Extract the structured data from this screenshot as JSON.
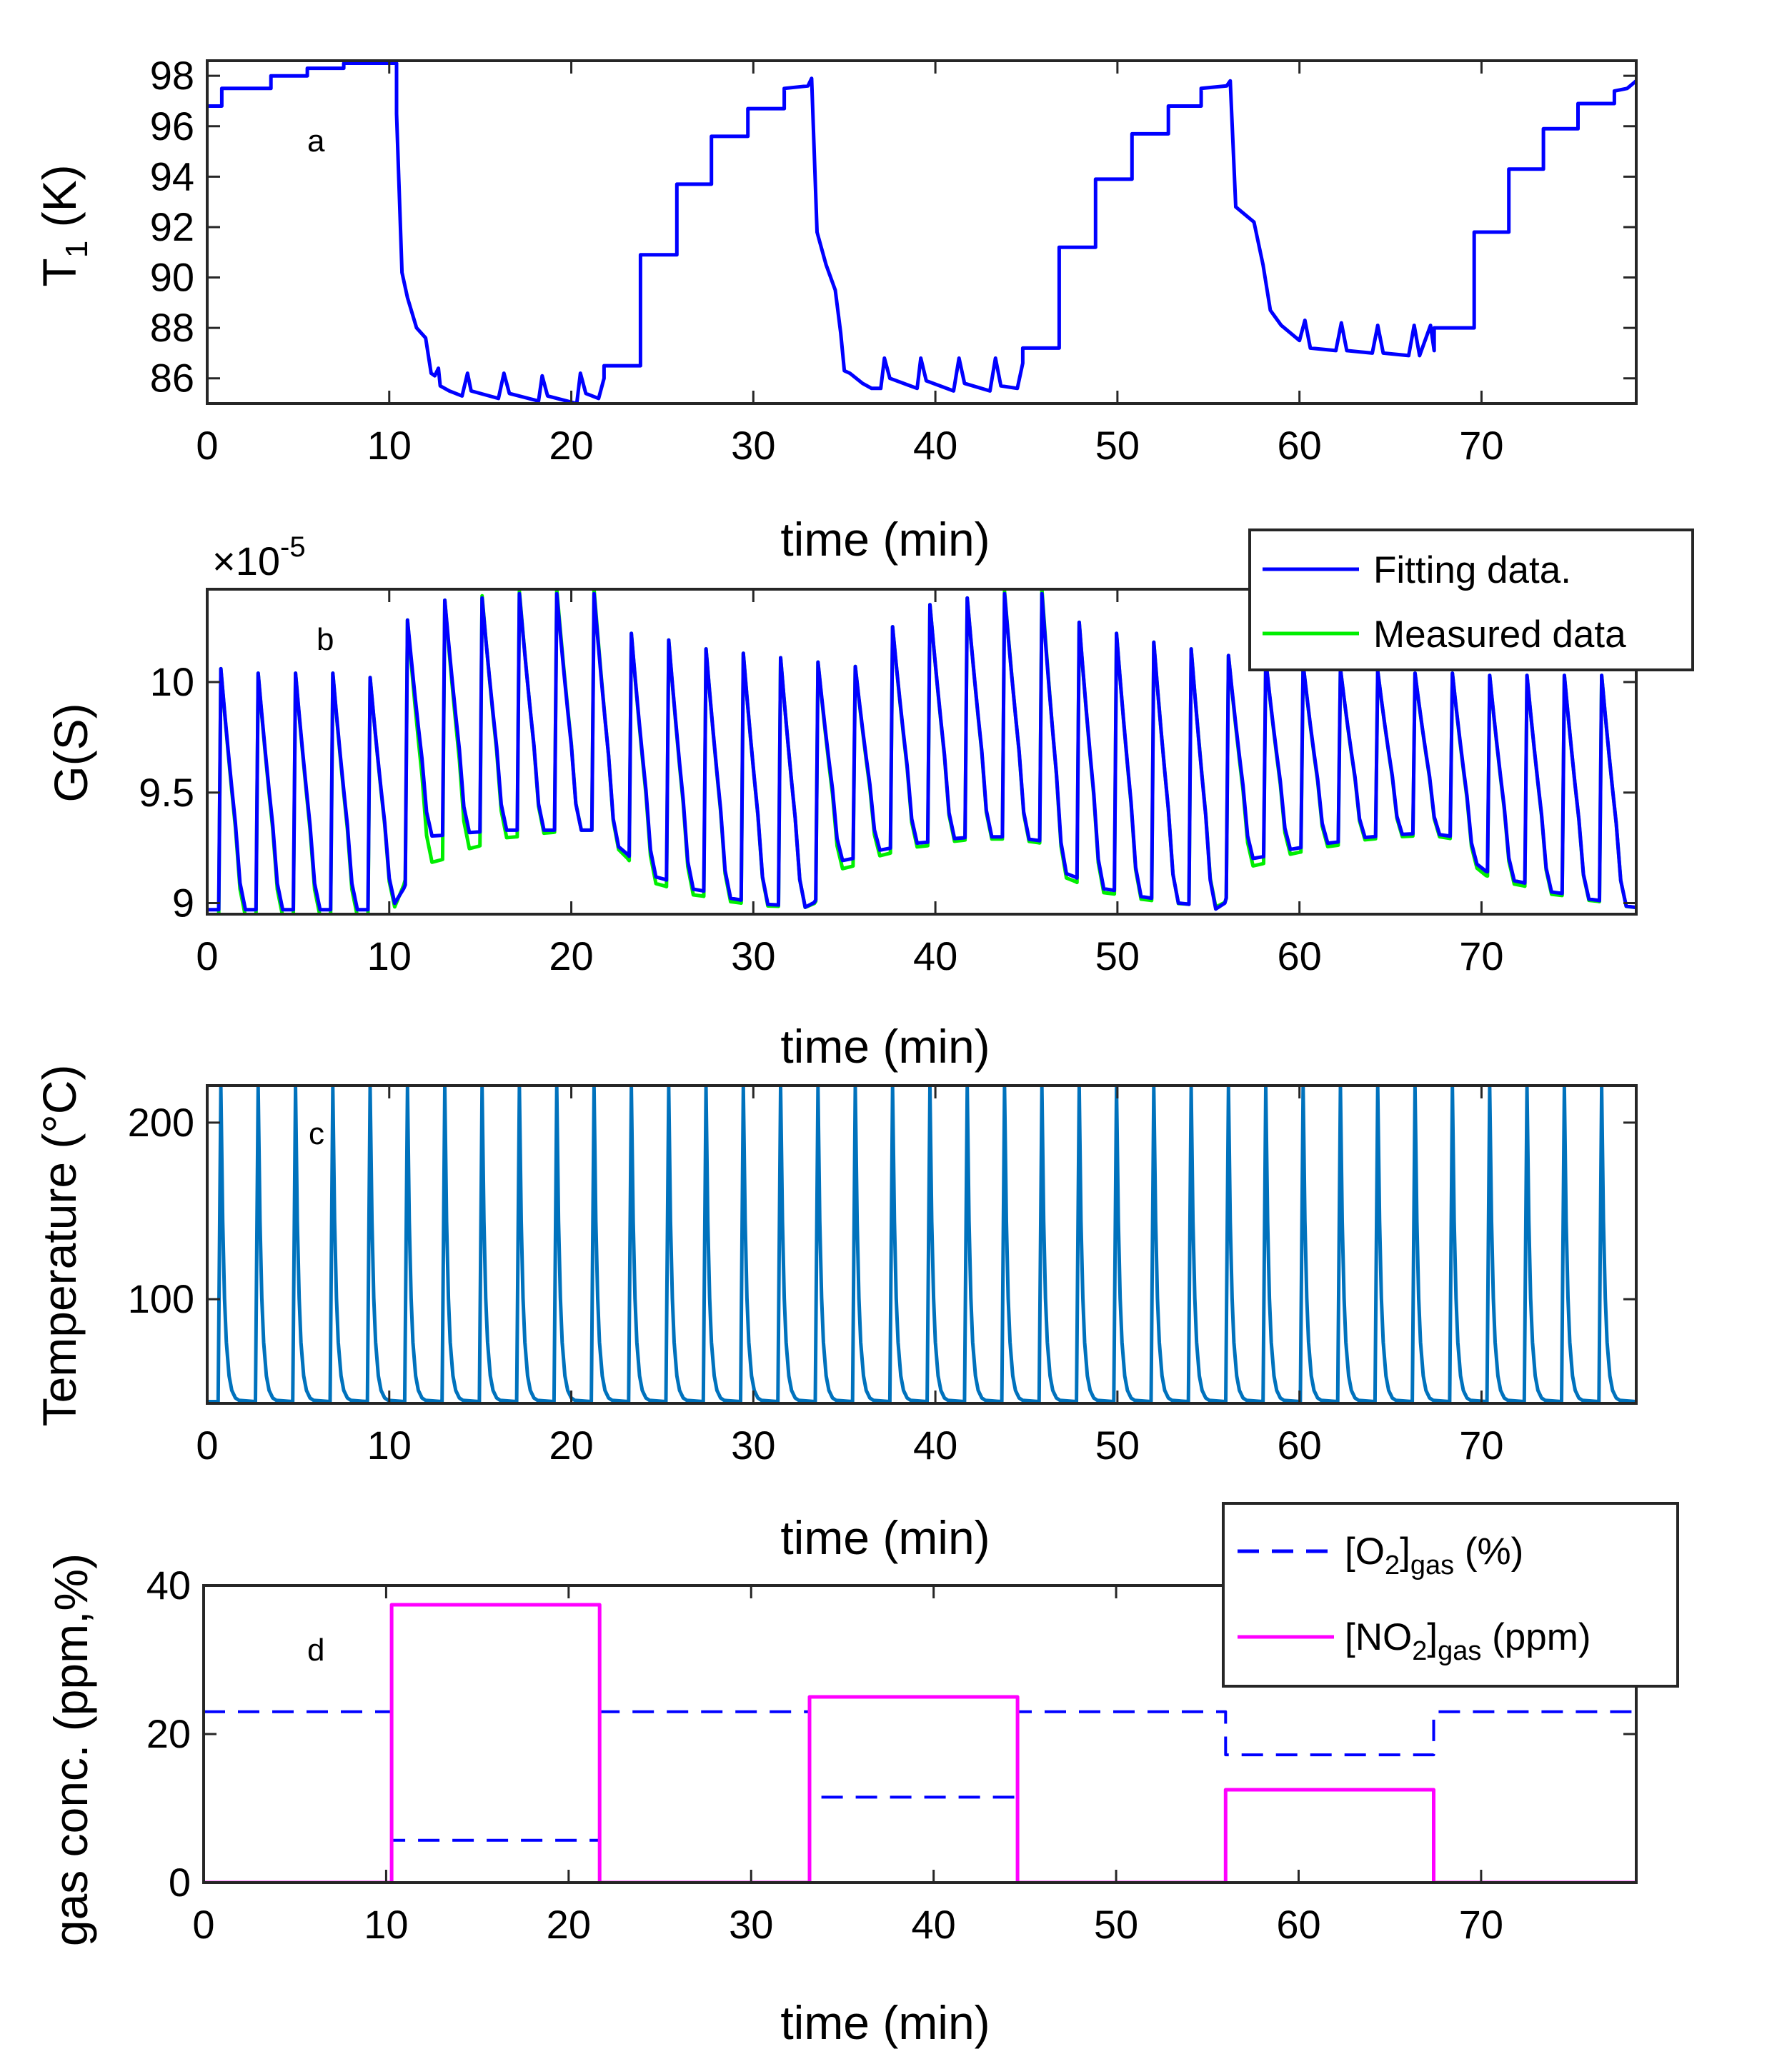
{
  "colors": {
    "fitting": "#0000ff",
    "measured": "#00ee00",
    "temperature": "#0072bd",
    "o2": "#0000ff",
    "no2": "#ff00ff",
    "axis": "#262626",
    "background": "#ffffff"
  },
  "chart_data": [
    {
      "type": "line",
      "panel_label": "a",
      "xlabel": "time (min)",
      "ylabel": "T",
      "ylabel_sub": "1",
      "ylabel_tail": " (K)",
      "xlim": [
        0,
        78.5
      ],
      "ylim": [
        85.0,
        98.6
      ],
      "xticks": [
        0,
        10,
        20,
        30,
        40,
        50,
        60,
        70
      ],
      "yticks": [
        86,
        88,
        90,
        92,
        94,
        96,
        98
      ],
      "legend": null,
      "series": [
        {
          "name": "",
          "x": [
            0,
            0.8,
            0.8,
            3.5,
            3.5,
            5.5,
            5.5,
            7.5,
            7.5,
            10.4,
            10.4,
            10.7,
            11.0,
            11.5,
            12.0,
            12.3,
            12.5,
            12.7,
            12.8,
            13.3,
            14.0,
            14.3,
            14.5,
            16.0,
            16.3,
            16.6,
            18.2,
            18.4,
            18.7,
            20.3,
            20.5,
            20.8,
            21.5,
            21.8,
            21.8,
            23.8,
            23.8,
            25.8,
            25.8,
            27.7,
            27.7,
            29.7,
            29.7,
            31.7,
            31.7,
            33.0,
            33.2,
            33.5,
            34.0,
            34.5,
            34.8,
            35.0,
            35.3,
            36.0,
            36.5,
            37.0,
            37.2,
            37.5,
            39.0,
            39.2,
            39.5,
            41.0,
            41.3,
            41.6,
            43.0,
            43.3,
            43.6,
            44.5,
            44.8,
            44.8,
            46.8,
            46.8,
            48.8,
            48.8,
            50.8,
            50.8,
            52.8,
            52.8,
            54.6,
            54.6,
            56.0,
            56.2,
            56.5,
            57.5,
            58.0,
            58.4,
            58.6,
            59.0,
            60.0,
            60.3,
            60.6,
            62.0,
            62.3,
            62.6,
            64.0,
            64.3,
            64.6,
            66.0,
            66.3,
            66.6,
            67.2,
            67.4,
            67.4,
            69.6,
            69.6,
            71.5,
            71.5,
            73.4,
            73.4,
            75.3,
            75.3,
            77.3,
            77.3,
            78.0,
            78.5
          ],
          "values": [
            96.8,
            96.8,
            97.5,
            97.5,
            98.0,
            98.0,
            98.3,
            98.3,
            98.5,
            98.5,
            96.5,
            90.2,
            89.2,
            88.0,
            87.6,
            86.2,
            86.1,
            86.4,
            85.7,
            85.5,
            85.3,
            86.2,
            85.5,
            85.2,
            86.2,
            85.4,
            85.1,
            86.1,
            85.3,
            85.0,
            86.2,
            85.4,
            85.2,
            86.0,
            86.5,
            86.5,
            90.9,
            90.9,
            93.7,
            93.7,
            95.6,
            95.6,
            96.7,
            96.7,
            97.5,
            97.6,
            97.9,
            91.8,
            90.5,
            89.5,
            87.8,
            86.3,
            86.2,
            85.8,
            85.6,
            85.6,
            86.8,
            86.0,
            85.6,
            86.8,
            85.9,
            85.5,
            86.8,
            85.8,
            85.5,
            86.8,
            85.7,
            85.6,
            86.6,
            87.2,
            87.2,
            91.2,
            91.2,
            93.9,
            93.9,
            95.7,
            95.7,
            96.8,
            96.8,
            97.5,
            97.6,
            97.8,
            92.8,
            92.2,
            90.5,
            88.7,
            88.5,
            88.1,
            87.5,
            88.3,
            87.2,
            87.1,
            88.2,
            87.1,
            87.0,
            88.1,
            87.0,
            86.9,
            88.1,
            86.9,
            88.1,
            87.1,
            88.0,
            88.0,
            91.8,
            91.8,
            94.3,
            94.3,
            95.9,
            95.9,
            96.9,
            96.9,
            97.4,
            97.5,
            97.8
          ]
        }
      ]
    },
    {
      "type": "line",
      "panel_label": "b",
      "xlabel": "time (min)",
      "ylabel": "G(S)",
      "exponent_label": "×10",
      "exponent_power": "-5",
      "xlim": [
        0,
        78.5
      ],
      "ylim": [
        8.95,
        10.42
      ],
      "xticks": [
        0,
        10,
        20,
        30,
        40,
        50,
        60,
        70
      ],
      "yticks": [
        9,
        9.5,
        10
      ],
      "ytick_labels": [
        "9",
        "9.5",
        "10"
      ],
      "pulse_period_min": 2.05,
      "first_pulse_min": 0.75,
      "legend": {
        "position": "top-right",
        "entries": [
          "Fitting data.",
          "Measured data"
        ]
      },
      "series": [
        {
          "name": "Fitting data.",
          "baseline_x": [
            0,
            10.3,
            12.0,
            16.0,
            20.0,
            22.0,
            23.8,
            26.0,
            30.0,
            33.2,
            34.5,
            38.0,
            42.0,
            44.6,
            46.5,
            47.0,
            48.5,
            52.0,
            55.8,
            56.5,
            60.0,
            64.0,
            67.3,
            69.5,
            70.0,
            74.0,
            78.5
          ],
          "baseline": [
            8.97,
            8.97,
            9.3,
            9.33,
            9.33,
            9.33,
            9.15,
            9.08,
            9.0,
            8.98,
            9.18,
            9.26,
            9.3,
            9.3,
            9.27,
            9.15,
            9.08,
            9.02,
            8.97,
            9.18,
            9.25,
            9.3,
            9.32,
            9.28,
            9.15,
            9.05,
            8.98
          ],
          "peaks": [
            10.06,
            10.04,
            10.04,
            10.04,
            10.02,
            10.28,
            10.37,
            10.38,
            10.4,
            10.4,
            10.4,
            10.22,
            10.19,
            10.15,
            10.13,
            10.11,
            10.09,
            10.07,
            10.25,
            10.35,
            10.38,
            10.4,
            10.4,
            10.27,
            10.22,
            10.18,
            10.15,
            10.12,
            10.1,
            10.08,
            10.06,
            10.05,
            10.04,
            10.04,
            10.03,
            10.03,
            10.03,
            10.03
          ]
        },
        {
          "name": "Measured data",
          "baseline_x": [
            0,
            10.3,
            11.0,
            16.0,
            20.0,
            22.0,
            23.8,
            26.0,
            30.0,
            33.2,
            34.5,
            38.0,
            42.0,
            44.6,
            46.5,
            47.0,
            48.5,
            52.0,
            55.8,
            56.5,
            60.0,
            64.0,
            67.3,
            69.5,
            70.0,
            74.0,
            78.5
          ],
          "baseline": [
            8.94,
            8.94,
            9.14,
            9.29,
            9.33,
            9.33,
            9.12,
            9.05,
            8.99,
            8.98,
            9.14,
            9.24,
            9.29,
            9.29,
            9.26,
            9.13,
            9.06,
            9.01,
            8.98,
            9.14,
            9.23,
            9.29,
            9.31,
            9.27,
            9.13,
            9.04,
            8.98
          ],
          "peaks": [
            10.06,
            10.04,
            10.04,
            10.04,
            10.02,
            10.28,
            10.37,
            10.39,
            10.41,
            10.42,
            10.42,
            10.22,
            10.19,
            10.15,
            10.13,
            10.11,
            10.09,
            10.07,
            10.25,
            10.35,
            10.38,
            10.41,
            10.42,
            10.27,
            10.22,
            10.18,
            10.15,
            10.12,
            10.1,
            10.08,
            10.06,
            10.05,
            10.04,
            10.04,
            10.03,
            10.03,
            10.03,
            10.03
          ]
        }
      ]
    },
    {
      "type": "line",
      "panel_label": "c",
      "xlabel": "time (min)",
      "ylabel": "Temperature (°C)",
      "xlim": [
        0,
        78.5
      ],
      "ylim": [
        41,
        221
      ],
      "xticks": [
        0,
        10,
        20,
        30,
        40,
        50,
        60,
        70
      ],
      "yticks": [
        100,
        200
      ],
      "pulse_period_min": 2.05,
      "first_pulse_min": 0.75,
      "baseline": 42,
      "peak": 220,
      "legend": null
    },
    {
      "type": "line",
      "panel_label": "d",
      "xlabel": "time (min)",
      "ylabel": "gas conc. (ppm,%)",
      "xlim": [
        0,
        78.5
      ],
      "ylim": [
        0,
        40
      ],
      "xticks": [
        0,
        10,
        20,
        30,
        40,
        50,
        60,
        70
      ],
      "yticks": [
        0,
        20,
        40
      ],
      "legend": {
        "position": "top-right",
        "entries": [
          {
            "main": "[O",
            "sub1": "2",
            "mid": "]",
            "sub2": "gas",
            "tail": " (%)"
          },
          {
            "main": "[NO",
            "sub1": "2",
            "mid": "]",
            "sub2": "gas",
            "tail": " (ppm)"
          }
        ]
      },
      "series": [
        {
          "name": "[O2]gas (%)",
          "style": "dashed",
          "x": [
            0,
            10.3,
            10.3,
            21.7,
            21.7,
            33.2,
            33.2,
            44.6,
            44.6,
            56.0,
            56.0,
            67.4,
            67.4,
            78.5
          ],
          "values": [
            23,
            23,
            5.7,
            5.7,
            23,
            23,
            11.5,
            11.5,
            23,
            23,
            17.2,
            17.2,
            23,
            23
          ]
        },
        {
          "name": "[NO2]gas (ppm)",
          "style": "solid",
          "x": [
            0,
            10.3,
            10.3,
            21.7,
            21.7,
            33.2,
            33.2,
            44.6,
            44.6,
            56.0,
            56.0,
            67.4,
            67.4,
            78.5
          ],
          "values": [
            0,
            0,
            37.4,
            37.4,
            0,
            0,
            25,
            25,
            0,
            0,
            12.5,
            12.5,
            0,
            0
          ]
        }
      ]
    }
  ]
}
